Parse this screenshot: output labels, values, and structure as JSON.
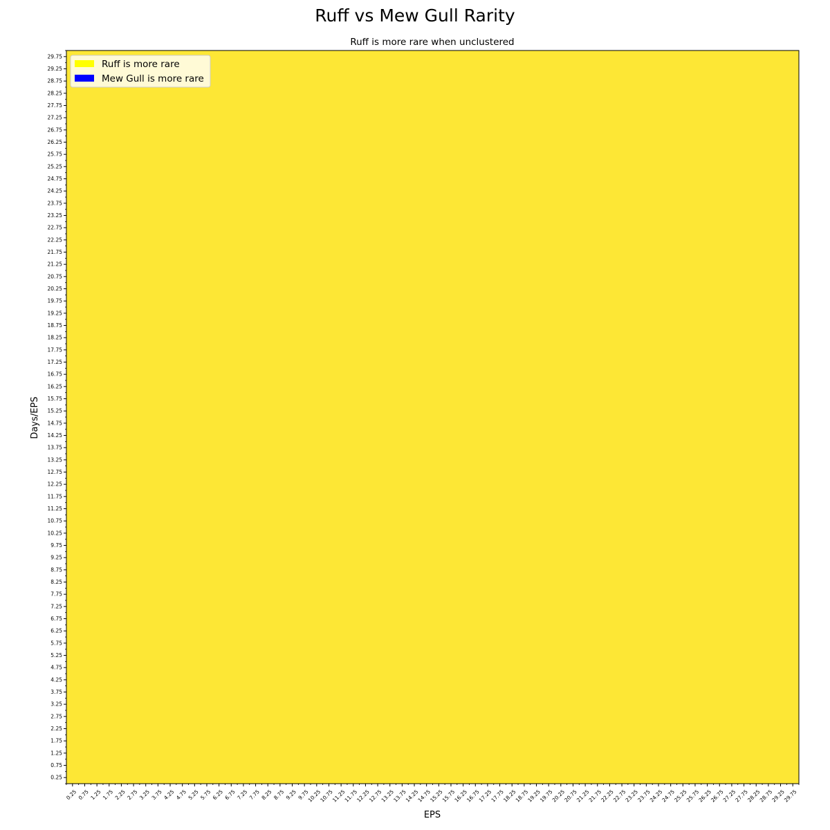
{
  "figure_title": "Ruff vs Mew Gull Rarity",
  "chart_data": {
    "type": "heatmap",
    "title": "Ruff is more rare when unclustered",
    "xlabel": "EPS",
    "ylabel": "Days/EPS",
    "x_ticks": [
      "0.25",
      "0.75",
      "1.25",
      "1.75",
      "2.25",
      "2.75",
      "3.25",
      "3.75",
      "4.25",
      "4.75",
      "5.25",
      "5.75",
      "6.25",
      "6.75",
      "7.25",
      "7.75",
      "8.25",
      "8.75",
      "9.25",
      "9.75",
      "10.25",
      "10.75",
      "11.25",
      "11.75",
      "12.25",
      "12.75",
      "13.25",
      "13.75",
      "14.25",
      "14.75",
      "15.25",
      "15.75",
      "16.25",
      "16.75",
      "17.25",
      "17.75",
      "18.25",
      "18.75",
      "19.25",
      "19.75",
      "20.25",
      "20.75",
      "21.25",
      "21.75",
      "22.25",
      "22.75",
      "23.25",
      "23.75",
      "24.25",
      "24.75",
      "25.25",
      "25.75",
      "26.25",
      "26.75",
      "27.25",
      "27.75",
      "28.25",
      "28.75",
      "29.25",
      "29.75"
    ],
    "y_ticks": [
      "0.25",
      "0.75",
      "1.25",
      "1.75",
      "2.25",
      "2.75",
      "3.25",
      "3.75",
      "4.25",
      "4.75",
      "5.25",
      "5.75",
      "6.25",
      "6.75",
      "7.25",
      "7.75",
      "8.25",
      "8.75",
      "9.25",
      "9.75",
      "10.25",
      "10.75",
      "11.25",
      "11.75",
      "12.25",
      "12.75",
      "13.25",
      "13.75",
      "14.25",
      "14.75",
      "15.25",
      "15.75",
      "16.25",
      "16.75",
      "17.25",
      "17.75",
      "18.25",
      "18.75",
      "19.25",
      "19.75",
      "20.25",
      "20.75",
      "21.25",
      "21.75",
      "22.25",
      "22.75",
      "23.25",
      "23.75",
      "24.25",
      "24.75",
      "25.25",
      "25.75",
      "26.25",
      "26.75",
      "27.25",
      "27.75",
      "28.25",
      "28.75",
      "29.25",
      "29.75"
    ],
    "x_range": [
      0,
      30
    ],
    "y_range": [
      0,
      30
    ],
    "cell_value_all": "Ruff is more rare",
    "cell_color": "#fde735",
    "legend": {
      "placement": "top-left",
      "entries": [
        {
          "label": "Ruff is more rare",
          "color": "#ffff00"
        },
        {
          "label": "Mew Gull is more rare",
          "color": "#0000ff"
        }
      ]
    }
  }
}
